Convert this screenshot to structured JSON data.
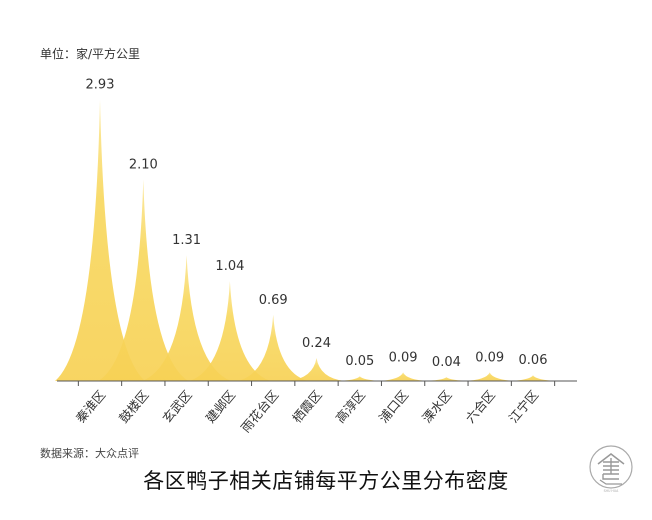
{
  "unit_label": "单位：家/平方公里",
  "source_label": "数据来源：大众点评",
  "title": "各区鸭子相关店铺每平方公里分布密度",
  "logo": {
    "icon": "shu-seal-logo-icon",
    "caption": "SHU HUA"
  },
  "colors": {
    "spike": "#F8D35A",
    "spike_light": "#FBE79A",
    "axis": "#555555",
    "text": "#333333"
  },
  "chart_data": {
    "type": "area",
    "title": "各区鸭子相关店铺每平方公里分布密度",
    "xlabel": "",
    "ylabel": "家/平方公里",
    "categories": [
      "秦淮区",
      "鼓楼区",
      "玄武区",
      "建邺区",
      "雨花台区",
      "栖霞区",
      "高淳区",
      "浦口区",
      "溧水区",
      "六合区",
      "江宁区"
    ],
    "values": [
      2.93,
      2.1,
      1.31,
      1.04,
      0.69,
      0.24,
      0.05,
      0.09,
      0.04,
      0.09,
      0.06
    ],
    "value_labels": [
      "2.93",
      "2.10",
      "1.31",
      "1.04",
      "0.69",
      "0.24",
      "0.05",
      "0.09",
      "0.04",
      "0.09",
      "0.06"
    ],
    "ylim": [
      0,
      3
    ],
    "grid": false,
    "legend": "none",
    "style": "spike/peak area (concave triangles)"
  }
}
